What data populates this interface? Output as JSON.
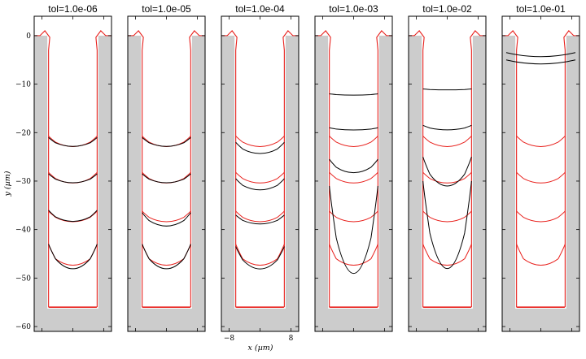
{
  "figure": {
    "ylabel": "y (µm)",
    "xlabel": "x (µm)"
  },
  "chart_data": {
    "type": "line",
    "description_free": true,
    "ylabel": "y (µm)",
    "xlabel": "x (µm)",
    "xlim": [
      -10,
      10
    ],
    "ylim": [
      -61,
      4
    ],
    "yticks": [
      0,
      -10,
      -20,
      -30,
      -40,
      -50,
      -60
    ],
    "ytick_labels": [
      "0",
      "−10",
      "−20",
      "−30",
      "−40",
      "−50",
      "−60"
    ],
    "xticks_labeled_panel": 2,
    "xticks": [
      -8,
      0,
      8
    ],
    "xtick_labels": [
      "−8",
      "",
      "8"
    ],
    "colors": {
      "reference": "#e8201c",
      "solution": "#000000",
      "substrate": "#cccccc"
    },
    "trench": {
      "x_left": -6.6,
      "x_right": 6.6,
      "bottom_y": -56.3,
      "top_y": 0
    },
    "reference_front_depths": [
      -23,
      -30.5,
      -38.5,
      -48.5
    ],
    "panels": [
      {
        "title": "tol=1.0e-06",
        "solution_fronts": [
          {
            "y_wall": -21,
            "y_mid": -23
          },
          {
            "y_wall": -28.5,
            "y_mid": -30.5
          },
          {
            "y_wall": -36,
            "y_mid": -38.5
          },
          {
            "y_wall": -43,
            "y_mid": -48.5
          }
        ]
      },
      {
        "title": "tol=1.0e-05",
        "solution_fronts": [
          {
            "y_wall": -21,
            "y_mid": -23
          },
          {
            "y_wall": -28.5,
            "y_mid": -30.5
          },
          {
            "y_wall": -36.5,
            "y_mid": -39.5
          },
          {
            "y_wall": -43,
            "y_mid": -48.5
          }
        ]
      },
      {
        "title": "tol=1.0e-04",
        "solution_fronts": [
          {
            "y_wall": -22,
            "y_mid": -24.5
          },
          {
            "y_wall": -29.5,
            "y_mid": -32
          },
          {
            "y_wall": -37,
            "y_mid": -39
          },
          {
            "y_wall": -43.5,
            "y_mid": -48.5
          }
        ]
      },
      {
        "title": "tol=1.0e-03",
        "solution_fronts": [
          {
            "y_wall": -12,
            "y_mid": -12.3
          },
          {
            "y_wall": -19,
            "y_mid": -19.5
          },
          {
            "y_wall": -25.5,
            "y_mid": -28.5
          },
          {
            "y_wall": -31,
            "y_mid": -50.5
          }
        ]
      },
      {
        "title": "tol=1.0e-02",
        "solution_fronts": [
          {
            "y_wall": -11,
            "y_mid": -11.2
          },
          {
            "y_wall": -18.5,
            "y_mid": -19.5
          },
          {
            "y_wall": -25,
            "y_mid": -31.5
          },
          {
            "y_wall": -30,
            "y_mid": -49.5
          }
        ]
      },
      {
        "title": "tol=1.0e-01",
        "solution_fronts": [
          {
            "y_wall": -3.5,
            "y_mid": -3.5
          },
          {
            "y_wall": -5,
            "y_mid": -5
          }
        ]
      }
    ]
  }
}
